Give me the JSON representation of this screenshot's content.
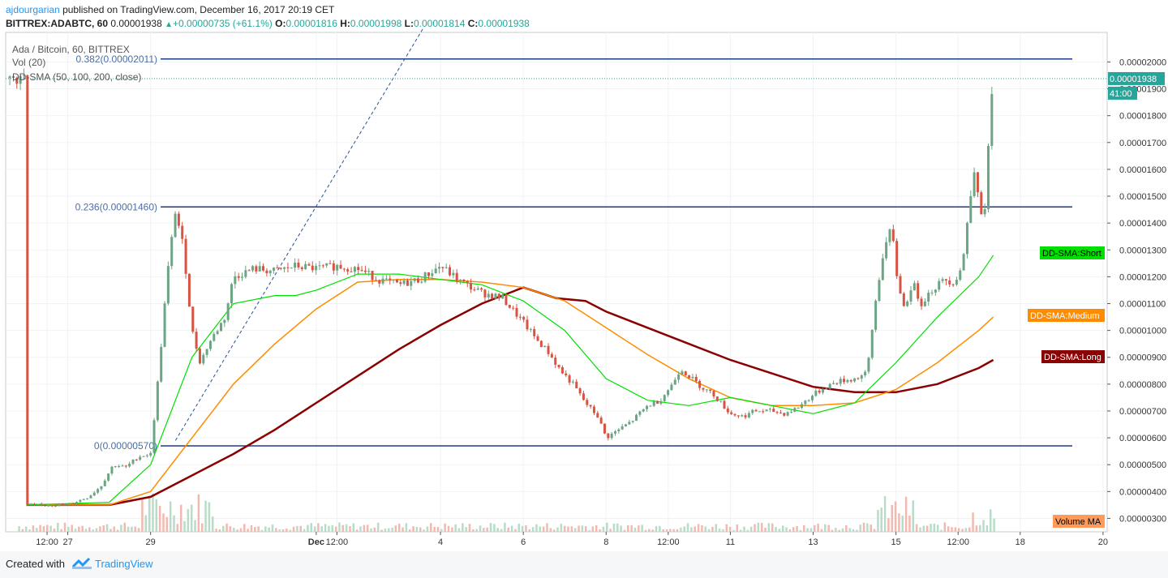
{
  "header": {
    "author": "ajdourgarian",
    "published": "published on TradingView.com, December 16, 2017 20:19 CET",
    "symbol": "BITREX:ADABTC, 60",
    "symbol_full": "BITTREX:ADABTC, 60",
    "last": "0.00001938",
    "change": "+0.00000735 (+61.1%)",
    "o_label": "O:",
    "o_val": "0.00001816",
    "h_label": "H:",
    "h_val": "0.00001998",
    "l_label": "L:",
    "l_val": "0.00001814",
    "c_label": "C:",
    "c_val": "0.00001938"
  },
  "legend": {
    "series_title": "Ada / Bitcoin, 60, BITTREX",
    "vol": "Vol (20)",
    "sma": "DD-SMA (50, 100, 200, close)"
  },
  "footer": {
    "created_with": "Created with",
    "brand": "TradingView"
  },
  "colors": {
    "up": "#6ba583",
    "down": "#d75442",
    "fib": "#1e3a8a",
    "sma_short": "#00e000",
    "sma_medium": "#ff8c00",
    "sma_long": "#8b0000",
    "last_price": "#26a69a"
  },
  "chart_data": {
    "type": "candlestick",
    "symbol": "ADABTC",
    "ylim": [
      2.5e-06,
      2.11e-05
    ],
    "y_ticks": [
      "0.00002000",
      "0.00001900",
      "0.00001800",
      "0.00001700",
      "0.00001600",
      "0.00001500",
      "0.00001400",
      "0.00001300",
      "0.00001200",
      "0.00001100",
      "0.00001000",
      "0.00000900",
      "0.00000800",
      "0.00000700",
      "0.00000600",
      "0.00000500",
      "0.00000400",
      "0.00000300"
    ],
    "y_tick_values": [
      2e-05,
      1.9e-05,
      1.8e-05,
      1.7e-05,
      1.6e-05,
      1.5e-05,
      1.4e-05,
      1.3e-05,
      1.2e-05,
      1.1e-05,
      1e-05,
      9e-06,
      8e-06,
      7e-06,
      6e-06,
      5e-06,
      4e-06,
      3e-06
    ],
    "x_ticks": [
      "12:00",
      "27",
      "29",
      "Dec",
      "12:00",
      "4",
      "6",
      "8",
      "12:00",
      "11",
      "13",
      "15",
      "12:00",
      "18",
      "20"
    ],
    "x_tick_days": [
      -5.5,
      -5,
      -3,
      1,
      1.5,
      4,
      6,
      8,
      9.5,
      11,
      13,
      15,
      16.5,
      18,
      20
    ],
    "fib_levels": [
      {
        "label": "0.382(0.00002011)",
        "value": 2.011e-05
      },
      {
        "label": "0.236(0.00001460)",
        "value": 1.46e-05
      },
      {
        "label": "0(0.00000570)",
        "value": 5.7e-06
      }
    ],
    "last_price_label": "0.00001938",
    "last_price": 1.938e-05,
    "countdown": "41:00",
    "sma_labels": {
      "short": "DD-SMA:Short",
      "medium": "DD-SMA:Medium",
      "long": "DD-SMA:Long"
    },
    "volume_label": "Volume MA",
    "price_path": [
      [
        -6.0,
        3.5e-06
      ],
      [
        -5.0,
        3.5e-06
      ],
      [
        -4.5,
        3.8e-06
      ],
      [
        -4.2,
        4.2e-06
      ],
      [
        -3.9,
        5e-06
      ],
      [
        -3.6,
        4.9e-06
      ],
      [
        -3.3,
        5.3e-06
      ],
      [
        -3.0,
        5.4e-06
      ],
      [
        -2.8,
        8.5e-06
      ],
      [
        -2.6,
        1.2e-05
      ],
      [
        -2.4,
        1.45e-05
      ],
      [
        -2.2,
        1.3e-05
      ],
      [
        -2.0,
        1e-05
      ],
      [
        -1.8,
        8.8e-06
      ],
      [
        -1.6,
        9.5e-06
      ],
      [
        -1.4,
        1e-05
      ],
      [
        -1.2,
        1.05e-05
      ],
      [
        -1.0,
        1.2e-05
      ],
      [
        -0.5,
        1.23e-05
      ],
      [
        0.0,
        1.22e-05
      ],
      [
        0.5,
        1.24e-05
      ],
      [
        1.0,
        1.23e-05
      ],
      [
        1.5,
        1.24e-05
      ],
      [
        2.0,
        1.23e-05
      ],
      [
        2.5,
        1.19e-05
      ],
      [
        3.0,
        1.17e-05
      ],
      [
        3.5,
        1.19e-05
      ],
      [
        4.0,
        1.24e-05
      ],
      [
        4.5,
        1.18e-05
      ],
      [
        5.0,
        1.14e-05
      ],
      [
        5.5,
        1.12e-05
      ],
      [
        6.0,
        1.03e-05
      ],
      [
        6.3,
        9.7e-06
      ],
      [
        6.6,
        9.2e-06
      ],
      [
        6.9,
        8.5e-06
      ],
      [
        7.2,
        8e-06
      ],
      [
        7.5,
        7.3e-06
      ],
      [
        7.8,
        6.8e-06
      ],
      [
        8.0,
        6e-06
      ],
      [
        8.3,
        6.3e-06
      ],
      [
        8.6,
        6.6e-06
      ],
      [
        9.0,
        7.2e-06
      ],
      [
        9.3,
        7.4e-06
      ],
      [
        9.6,
        8e-06
      ],
      [
        9.8,
        8.6e-06
      ],
      [
        10.0,
        8.3e-06
      ],
      [
        10.3,
        7.9e-06
      ],
      [
        10.6,
        7.6e-06
      ],
      [
        11.0,
        6.9e-06
      ],
      [
        11.3,
        6.8e-06
      ],
      [
        11.6,
        7e-06
      ],
      [
        12.0,
        7e-06
      ],
      [
        12.3,
        6.9e-06
      ],
      [
        12.6,
        7.1e-06
      ],
      [
        13.0,
        7.6e-06
      ],
      [
        13.3,
        7.9e-06
      ],
      [
        13.6,
        8.1e-06
      ],
      [
        14.0,
        8.2e-06
      ],
      [
        14.3,
        8.4e-06
      ],
      [
        14.5,
        1.1e-05
      ],
      [
        14.7,
        1.3e-05
      ],
      [
        14.9,
        1.38e-05
      ],
      [
        15.0,
        1.22e-05
      ],
      [
        15.2,
        1.08e-05
      ],
      [
        15.4,
        1.18e-05
      ],
      [
        15.6,
        1.1e-05
      ],
      [
        15.8,
        1.14e-05
      ],
      [
        16.0,
        1.17e-05
      ],
      [
        16.2,
        1.19e-05
      ],
      [
        16.4,
        1.18e-05
      ],
      [
        16.6,
        1.24e-05
      ],
      [
        16.8,
        1.5e-05
      ],
      [
        16.9,
        1.62e-05
      ],
      [
        17.0,
        1.5e-05
      ],
      [
        17.1,
        1.36e-05
      ],
      [
        17.2,
        1.6e-05
      ],
      [
        17.3,
        1.85e-05
      ],
      [
        17.35,
        1.94e-05
      ]
    ],
    "sma_short": [
      [
        -6.0,
        3.5e-06
      ],
      [
        -4.0,
        3.6e-06
      ],
      [
        -3.0,
        5e-06
      ],
      [
        -2.0,
        9e-06
      ],
      [
        -1.0,
        1.1e-05
      ],
      [
        0.0,
        1.13e-05
      ],
      [
        0.5,
        1.13e-05
      ],
      [
        1.0,
        1.15e-05
      ],
      [
        2.0,
        1.21e-05
      ],
      [
        3.0,
        1.21e-05
      ],
      [
        4.0,
        1.19e-05
      ],
      [
        5.0,
        1.17e-05
      ],
      [
        6.0,
        1.11e-05
      ],
      [
        7.0,
        1e-05
      ],
      [
        8.0,
        8.2e-06
      ],
      [
        9.0,
        7.4e-06
      ],
      [
        10.0,
        7.2e-06
      ],
      [
        11.0,
        7.5e-06
      ],
      [
        12.0,
        7.2e-06
      ],
      [
        13.0,
        6.9e-06
      ],
      [
        14.0,
        7.3e-06
      ],
      [
        15.0,
        8.8e-06
      ],
      [
        16.0,
        1.05e-05
      ],
      [
        17.0,
        1.2e-05
      ],
      [
        17.35,
        1.28e-05
      ]
    ],
    "sma_medium": [
      [
        -6.0,
        3.5e-06
      ],
      [
        -4.0,
        3.5e-06
      ],
      [
        -3.0,
        4e-06
      ],
      [
        -2.0,
        6e-06
      ],
      [
        -1.0,
        8e-06
      ],
      [
        0.0,
        9.5e-06
      ],
      [
        1.0,
        1.08e-05
      ],
      [
        2.0,
        1.18e-05
      ],
      [
        3.0,
        1.19e-05
      ],
      [
        4.0,
        1.19e-05
      ],
      [
        5.0,
        1.18e-05
      ],
      [
        6.0,
        1.16e-05
      ],
      [
        7.0,
        1.11e-05
      ],
      [
        8.0,
        1.01e-05
      ],
      [
        9.0,
        9.1e-06
      ],
      [
        10.0,
        8.2e-06
      ],
      [
        11.0,
        7.5e-06
      ],
      [
        12.0,
        7.2e-06
      ],
      [
        13.0,
        7.2e-06
      ],
      [
        14.0,
        7.3e-06
      ],
      [
        15.0,
        7.8e-06
      ],
      [
        16.0,
        8.8e-06
      ],
      [
        17.0,
        1e-05
      ],
      [
        17.35,
        1.05e-05
      ]
    ],
    "sma_long": [
      [
        -6.0,
        3.5e-06
      ],
      [
        -4.0,
        3.5e-06
      ],
      [
        -3.0,
        3.8e-06
      ],
      [
        -2.0,
        4.6e-06
      ],
      [
        -1.0,
        5.4e-06
      ],
      [
        0.0,
        6.3e-06
      ],
      [
        1.0,
        7.3e-06
      ],
      [
        2.0,
        8.3e-06
      ],
      [
        3.0,
        9.3e-06
      ],
      [
        4.0,
        1.02e-05
      ],
      [
        5.0,
        1.1e-05
      ],
      [
        6.0,
        1.16e-05
      ],
      [
        6.8,
        1.12e-05
      ],
      [
        7.5,
        1.11e-05
      ],
      [
        8.0,
        1.07e-05
      ],
      [
        9.0,
        1.01e-05
      ],
      [
        10.0,
        9.5e-06
      ],
      [
        11.0,
        8.9e-06
      ],
      [
        12.0,
        8.4e-06
      ],
      [
        13.0,
        7.9e-06
      ],
      [
        14.0,
        7.7e-06
      ],
      [
        15.0,
        7.7e-06
      ],
      [
        16.0,
        8e-06
      ],
      [
        17.0,
        8.6e-06
      ],
      [
        17.35,
        8.9e-06
      ]
    ],
    "dashed_trendline": [
      [
        -2.4,
        5.9e-06
      ],
      [
        3.6,
        2.13e-05
      ]
    ]
  }
}
